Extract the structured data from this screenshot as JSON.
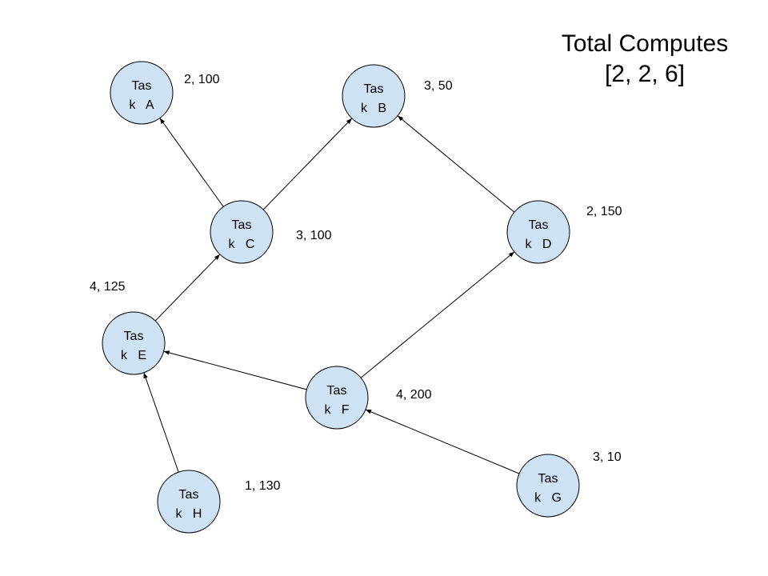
{
  "title": {
    "line1": "Total Computes",
    "line2": "[2, 2, 6]"
  },
  "colors": {
    "node_fill": "#cfe2f3",
    "stroke": "#000000"
  },
  "nodes": [
    {
      "id": "A",
      "line1": "Tas",
      "line2": "k   A",
      "label": "2, 100"
    },
    {
      "id": "B",
      "line1": "Tas",
      "line2": "k   B",
      "label": "3, 50"
    },
    {
      "id": "C",
      "line1": "Tas",
      "line2": "k   C",
      "label": "3, 100"
    },
    {
      "id": "D",
      "line1": "Tas",
      "line2": "k   D",
      "label": "2, 150"
    },
    {
      "id": "E",
      "line1": "Tas",
      "line2": "k   E",
      "label": "4, 125"
    },
    {
      "id": "F",
      "line1": "Tas",
      "line2": "k   F",
      "label": "4, 200"
    },
    {
      "id": "G",
      "line1": "Tas",
      "line2": "k   G",
      "label": "3, 10"
    },
    {
      "id": "H",
      "line1": "Tas",
      "line2": "k   H",
      "label": "1, 130"
    }
  ],
  "edges": [
    {
      "from": "C",
      "to": "A"
    },
    {
      "from": "C",
      "to": "B"
    },
    {
      "from": "D",
      "to": "B"
    },
    {
      "from": "E",
      "to": "C"
    },
    {
      "from": "F",
      "to": "E"
    },
    {
      "from": "F",
      "to": "D"
    },
    {
      "from": "H",
      "to": "E"
    },
    {
      "from": "G",
      "to": "F"
    }
  ]
}
